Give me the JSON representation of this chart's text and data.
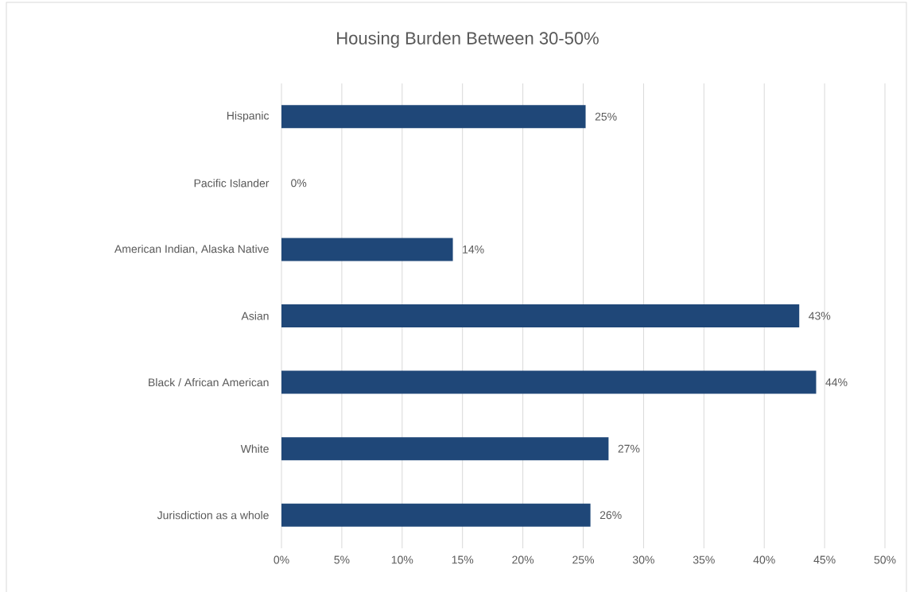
{
  "chart_data": {
    "type": "bar",
    "orientation": "horizontal",
    "title": "Housing Burden  Between 30-50%",
    "categories": [
      "Hispanic",
      "Pacific Islander",
      "American Indian, Alaska Native",
      "Asian",
      "Black / African American",
      "White",
      "Jurisdiction as a whole"
    ],
    "values": [
      25.2,
      0,
      14.2,
      42.9,
      44.3,
      27.1,
      25.6
    ],
    "value_labels": [
      "25%",
      "0%",
      "14%",
      "43%",
      "44%",
      "27%",
      "26%"
    ],
    "color": "#1f4778",
    "xlim": [
      0,
      50
    ],
    "xticks": [
      {
        "value": 0,
        "label": "0%"
      },
      {
        "value": 5,
        "label": "5%"
      },
      {
        "value": 10,
        "label": "10%"
      },
      {
        "value": 15,
        "label": "15%"
      },
      {
        "value": 20,
        "label": "20%"
      },
      {
        "value": 25,
        "label": "25%"
      },
      {
        "value": 30,
        "label": "30%"
      },
      {
        "value": 35,
        "label": "35%"
      },
      {
        "value": 40,
        "label": "40%"
      },
      {
        "value": 45,
        "label": "45%"
      },
      {
        "value": 50,
        "label": "50%"
      }
    ],
    "grid": "x"
  }
}
